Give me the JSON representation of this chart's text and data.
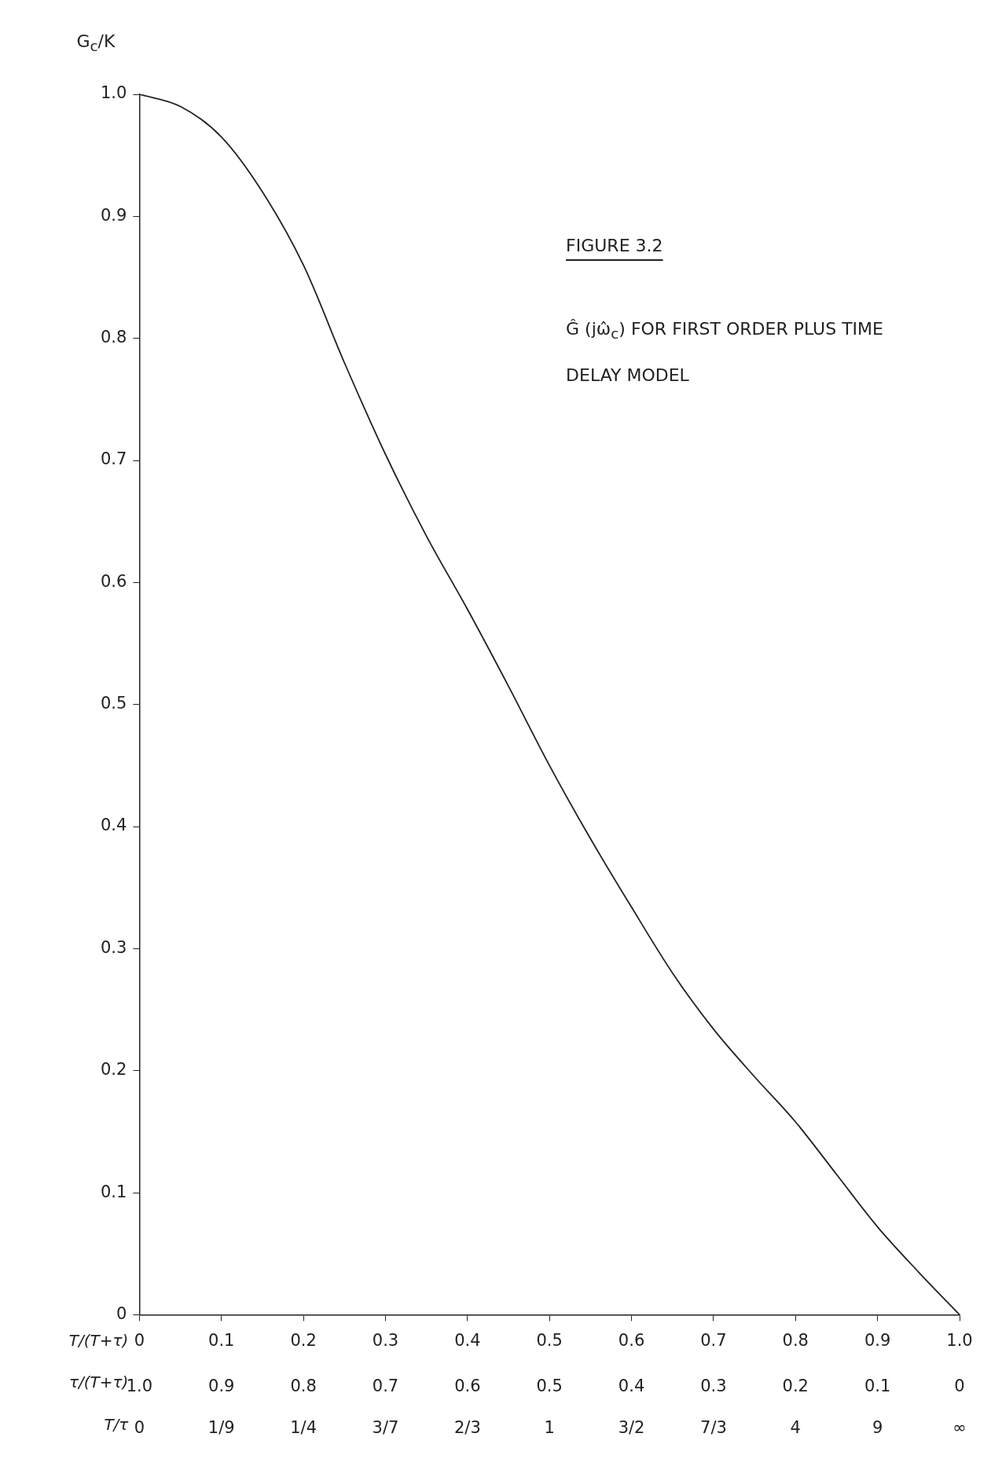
{
  "chart_data": {
    "type": "line",
    "title": "FIGURE 3.2",
    "subtitle": "Ĝ (jω̂$_{c}$) FOR FIRST ORDER PLUS TIME DELAY MODEL",
    "xlabel": "T/(T+τ)",
    "x2label": "τ/(T+τ)",
    "annotations": [
      "T/τ",
      "0",
      "1/9",
      "1/4",
      "3/7",
      "2/3",
      "1",
      "3/2",
      "7/3",
      "4",
      "9",
      "∞"
    ],
    "ylabel": "G$_{c}$/K",
    "x": [
      0,
      0.05,
      0.1,
      0.15,
      0.2,
      0.25,
      0.3,
      0.35,
      0.4,
      0.45,
      0.5,
      0.55,
      0.6,
      0.65,
      0.7,
      0.75,
      0.8,
      0.85,
      0.9,
      0.95,
      1.0
    ],
    "series": [
      {
        "color": "#222222",
        "values": [
          1.0,
          0.99,
          0.965,
          0.92,
          0.86,
          0.78,
          0.705,
          0.638,
          0.578,
          0.515,
          0.45,
          0.39,
          0.334,
          0.28,
          0.234,
          0.195,
          0.158,
          0.115,
          0.072,
          0.035,
          0
        ]
      }
    ],
    "xlim": [
      0,
      1
    ],
    "xticks": [
      0,
      0.1,
      0.2,
      0.3,
      0.4,
      0.5,
      0.6,
      0.7,
      0.8,
      0.9,
      {
        "value": 1,
        "label": "1.0"
      }
    ],
    "x2lim": [
      1,
      0
    ],
    "x2ticks": [
      {
        "value": 1,
        "label": "1.0"
      },
      0.9,
      0.8,
      0.7,
      0.6,
      0.5,
      0.4,
      0.3,
      0.2,
      0.1,
      0
    ],
    "ylim": [
      0,
      1
    ],
    "yticks": [
      0,
      0.1,
      0.2,
      0.3,
      0.4,
      0.5,
      0.6,
      0.7,
      0.8,
      0.9,
      {
        "value": 1,
        "label": "1.0"
      }
    ],
    "grid": false,
    "legend": false,
    "marker": "none",
    "line_style": "solid"
  }
}
